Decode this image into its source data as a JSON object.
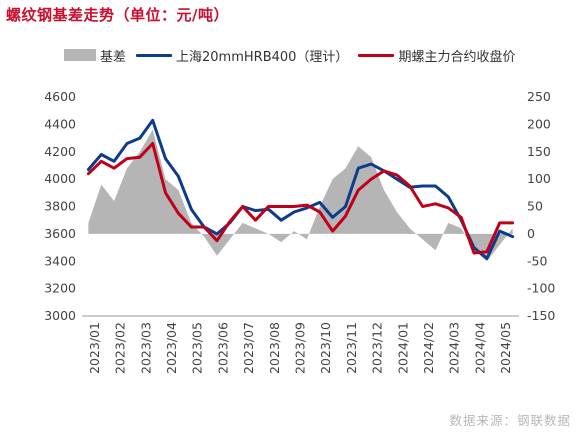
{
  "title": "螺纹钢基差走势（单位：元/吨）",
  "source": "数据来源：钢联数据",
  "colors": {
    "basis": "#b5b5b5",
    "spot": "#0d3c8c",
    "futures": "#c00018",
    "title": "#c8102e"
  },
  "chart_data": {
    "type": "line",
    "title": "螺纹钢基差走势（单位：元/吨）",
    "legend_position": "top",
    "grid": false,
    "x_ticks": [
      "2023/01",
      "2023/02",
      "2023/03",
      "2023/04",
      "2023/05",
      "2023/06",
      "2023/07",
      "2023/08",
      "2023/09",
      "2023/10",
      "2023/11",
      "2023/12",
      "2024/01",
      "2024/02",
      "2024/03",
      "2024/04",
      "2024/05"
    ],
    "x_range": [
      "2023/01",
      "2024/05"
    ],
    "y_left": {
      "min": 3000,
      "max": 4600,
      "step": 200
    },
    "y_right": {
      "min": -150,
      "max": 250,
      "step": 50
    },
    "series": [
      {
        "name": "基差",
        "type": "area",
        "axis": "right",
        "x": [
          "2023/01",
          "2023/01",
          "2023/02",
          "2023/02",
          "2023/03",
          "2023/03",
          "2023/04",
          "2023/04",
          "2023/05",
          "2023/05",
          "2023/06",
          "2023/06",
          "2023/07",
          "2023/07",
          "2023/08",
          "2023/08",
          "2023/09",
          "2023/09",
          "2023/10",
          "2023/10",
          "2023/11",
          "2023/11",
          "2023/12",
          "2023/12",
          "2024/01",
          "2024/01",
          "2024/02",
          "2024/02",
          "2024/03",
          "2024/03",
          "2024/04",
          "2024/04",
          "2024/05",
          "2024/05"
        ],
        "values": [
          20,
          90,
          60,
          120,
          150,
          190,
          100,
          80,
          20,
          -5,
          -40,
          -10,
          20,
          10,
          0,
          -15,
          5,
          -10,
          50,
          100,
          120,
          160,
          140,
          80,
          40,
          10,
          -10,
          -30,
          20,
          10,
          -30,
          -50,
          -20,
          10
        ]
      },
      {
        "name": "上海20mmHRB400（理计）",
        "type": "line",
        "axis": "left",
        "x": [
          "2023/01",
          "2023/01",
          "2023/02",
          "2023/02",
          "2023/03",
          "2023/03",
          "2023/04",
          "2023/04",
          "2023/05",
          "2023/05",
          "2023/06",
          "2023/06",
          "2023/07",
          "2023/07",
          "2023/08",
          "2023/08",
          "2023/09",
          "2023/09",
          "2023/10",
          "2023/10",
          "2023/11",
          "2023/11",
          "2023/12",
          "2023/12",
          "2024/01",
          "2024/01",
          "2024/02",
          "2024/02",
          "2024/03",
          "2024/03",
          "2024/04",
          "2024/04",
          "2024/05",
          "2024/05"
        ],
        "values": [
          4070,
          4180,
          4130,
          4260,
          4300,
          4430,
          4150,
          4020,
          3780,
          3650,
          3600,
          3680,
          3800,
          3770,
          3780,
          3700,
          3760,
          3790,
          3830,
          3720,
          3800,
          4080,
          4110,
          4060,
          4000,
          3940,
          3950,
          3950,
          3870,
          3700,
          3500,
          3420,
          3620,
          3580
        ]
      },
      {
        "name": "期螺主力合约收盘价",
        "type": "line",
        "axis": "left",
        "x": [
          "2023/01",
          "2023/01",
          "2023/02",
          "2023/02",
          "2023/03",
          "2023/03",
          "2023/04",
          "2023/04",
          "2023/05",
          "2023/05",
          "2023/06",
          "2023/06",
          "2023/07",
          "2023/07",
          "2023/08",
          "2023/08",
          "2023/09",
          "2023/09",
          "2023/10",
          "2023/10",
          "2023/11",
          "2023/11",
          "2023/12",
          "2023/12",
          "2024/01",
          "2024/01",
          "2024/02",
          "2024/02",
          "2024/03",
          "2024/03",
          "2024/04",
          "2024/04",
          "2024/05",
          "2024/05"
        ],
        "values": [
          4040,
          4130,
          4080,
          4150,
          4160,
          4260,
          3900,
          3750,
          3650,
          3650,
          3550,
          3690,
          3800,
          3700,
          3800,
          3800,
          3800,
          3810,
          3760,
          3620,
          3730,
          3920,
          4000,
          4060,
          4030,
          3950,
          3800,
          3820,
          3790,
          3720,
          3460,
          3470,
          3680,
          3680
        ]
      }
    ]
  }
}
